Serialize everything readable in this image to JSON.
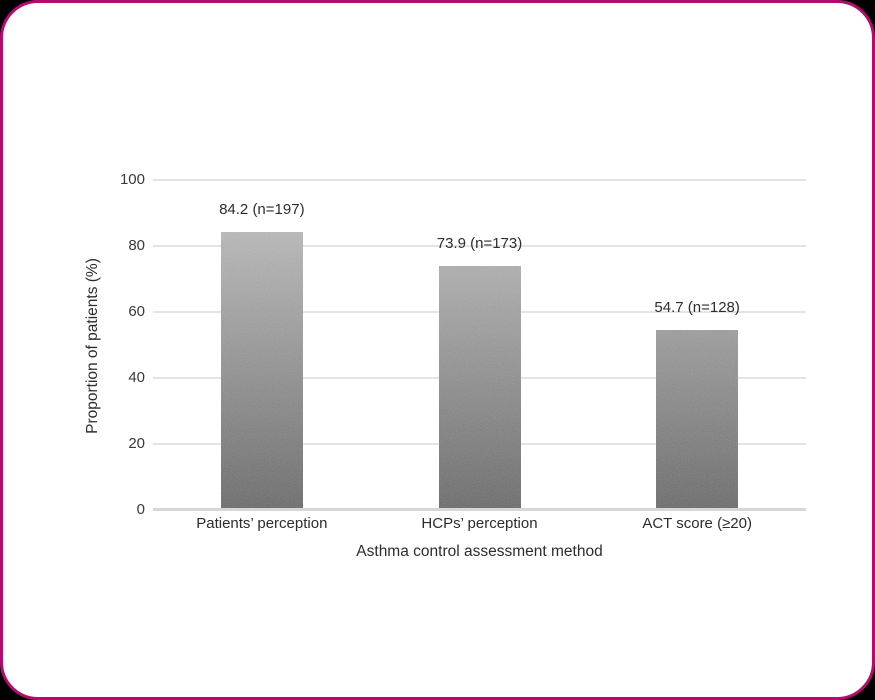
{
  "frame": {
    "border_color": "#b40c6e",
    "card_background": "#ffffff",
    "outside_background": "#000000"
  },
  "chart_data": {
    "type": "bar",
    "categories": [
      "Patients’ perception",
      "HCPs’ perception",
      "ACT score (≥20)"
    ],
    "values": [
      84.2,
      73.9,
      54.7
    ],
    "counts": [
      197,
      173,
      128
    ],
    "bar_labels": [
      "84.2 (n=197)",
      "73.9 (n=173)",
      "54.7 (n=128)"
    ],
    "title": "",
    "xlabel": "Asthma control assessment method",
    "ylabel": "Proportion of patients (%)",
    "ylim": [
      0,
      100
    ],
    "yticks": [
      0,
      20,
      40,
      60,
      80,
      100
    ],
    "grid": "horizontal",
    "legend": "none",
    "bar_gradient_top": "#c8c8c8",
    "bar_gradient_bottom": "#676767",
    "gridline_color": "#e4e4e4",
    "axis_line_color": "#d7d7d7",
    "text_color": "#2d2d2d"
  }
}
